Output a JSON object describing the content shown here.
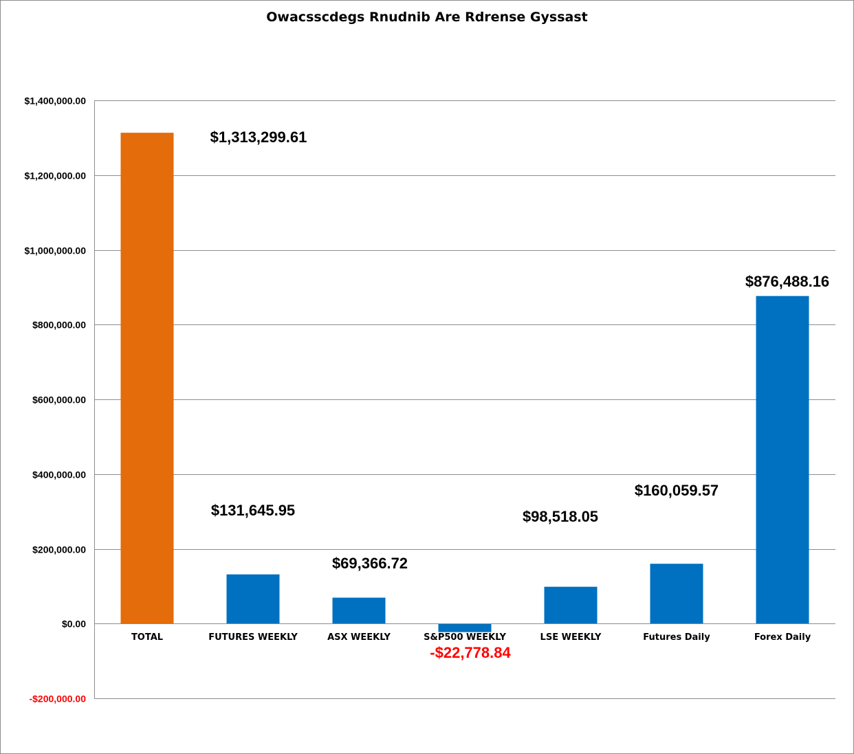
{
  "chart_data": {
    "type": "bar",
    "title": "Owacsscdegs Rnudnib Are Rdrense Gyssast",
    "xlabel": "",
    "ylabel": "",
    "ylim": [
      -200000,
      1400000
    ],
    "grid": true,
    "legend": "none",
    "categories": [
      "TOTAL",
      "FUTURES WEEKLY",
      "ASX WEEKLY",
      "S&P500 WEEKLY",
      "LSE WEEKLY",
      "Futures Daily",
      "Forex Daily"
    ],
    "values": [
      1313299.61,
      131645.95,
      69366.72,
      -22778.84,
      98518.05,
      160059.57,
      876488.16
    ],
    "data_labels": [
      "$1,313,299.61",
      "$131,645.95",
      "$69,366.72",
      "-$22,778.84",
      "$98,518.05",
      "$160,059.57",
      "$876,488.16"
    ],
    "yticks": [
      1400000,
      1200000,
      1000000,
      800000,
      600000,
      400000,
      200000,
      0,
      -200000
    ],
    "ytick_labels": [
      "$1,400,000.00",
      "$1,200,000.00",
      "$1,000,000.00",
      "$800,000.00",
      "$600,000.00",
      "$400,000.00",
      "$200,000.00",
      "$0.00",
      "-$200,000.00"
    ],
    "colors": {
      "highlight_bar": "#E46C0A",
      "bar": "#0070C0",
      "negative_text": "#FF0000",
      "text": "#000000",
      "grid": "#8C8C8C"
    }
  }
}
